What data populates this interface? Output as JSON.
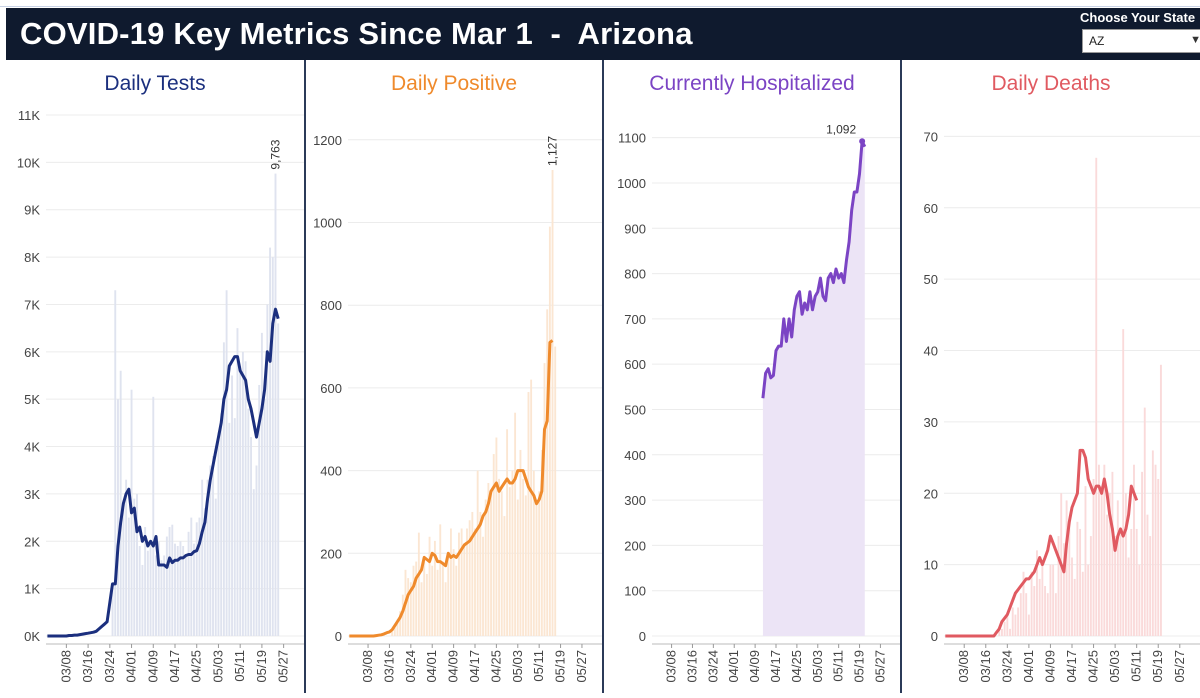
{
  "header": {
    "title": "COVID-19 Key Metrics Since Mar 1  -  Arizona",
    "state_label": "Choose Your State",
    "state_value": "AZ"
  },
  "chart_data": [
    {
      "type": "bar",
      "title": "Daily Tests",
      "color": "#1b2f7e",
      "bar_color": "#dfe3ef",
      "x_tick_labels": [
        "03/08",
        "03/16",
        "03/24",
        "04/01",
        "04/09",
        "04/17",
        "04/25",
        "05/03",
        "05/11",
        "05/19",
        "05/27"
      ],
      "y_tick_labels": [
        "0K",
        "1K",
        "2K",
        "3K",
        "4K",
        "5K",
        "6K",
        "7K",
        "8K",
        "9K",
        "10K",
        "11K"
      ],
      "ylim": [
        0,
        11000
      ],
      "start_date": "03/01",
      "bar_start_index": 24,
      "bars": [
        1100,
        7300,
        5000,
        5600,
        2700,
        3300,
        2500,
        5200,
        2900,
        3000,
        1900,
        1500,
        2300,
        1800,
        2000,
        5050,
        1700,
        2000,
        1600,
        1700,
        2100,
        2300,
        2350,
        1950,
        1900,
        2000,
        1900,
        1700,
        2200,
        2500,
        1950,
        2400,
        2500,
        3300,
        2700,
        3300,
        3600,
        3800,
        2900,
        4300,
        4700,
        6200,
        7300,
        4500,
        5500,
        4600,
        6500,
        5700,
        6000,
        5800,
        4800,
        4200,
        3100,
        3600,
        5300,
        6400,
        5000,
        7000,
        8200,
        8000,
        9763,
        6600
      ],
      "line_start_index": 0,
      "line": [
        0,
        0,
        0,
        0,
        0,
        0,
        0,
        0,
        10,
        10,
        20,
        20,
        30,
        40,
        50,
        60,
        70,
        80,
        100,
        150,
        200,
        250,
        300,
        700,
        1100,
        1100,
        1900,
        2400,
        2800,
        3000,
        3100,
        2600,
        2700,
        2200,
        2300,
        2000,
        2100,
        1900,
        2000,
        1900,
        2100,
        1500,
        1500,
        1500,
        1450,
        1650,
        1550,
        1600,
        1600,
        1650,
        1650,
        1700,
        1720,
        1720,
        1780,
        1800,
        1950,
        2200,
        2400,
        2900,
        3300,
        3600,
        3900,
        4200,
        4500,
        5000,
        5200,
        5700,
        5800,
        5900,
        5900,
        5600,
        5500,
        5400,
        5000,
        4800,
        4500,
        4200,
        4500,
        4800,
        5200,
        6000,
        5800,
        6600,
        6900,
        6700
      ],
      "peak_label": "9,763"
    },
    {
      "type": "bar",
      "title": "Daily Positive",
      "color": "#ef8a2c",
      "bar_color": "#fbe6d2",
      "x_tick_labels": [
        "03/08",
        "03/16",
        "03/24",
        "04/01",
        "04/09",
        "04/17",
        "04/25",
        "05/03",
        "05/11",
        "05/19",
        "05/27"
      ],
      "y_tick_labels": [
        "0",
        "200",
        "400",
        "600",
        "800",
        "1000",
        "1200"
      ],
      "ylim": [
        0,
        1260
      ],
      "start_date": "03/01",
      "bar_start_index": 16,
      "bars": [
        10,
        20,
        40,
        60,
        100,
        160,
        140,
        130,
        170,
        180,
        250,
        130,
        180,
        150,
        240,
        170,
        230,
        160,
        270,
        180,
        130,
        190,
        260,
        210,
        170,
        250,
        260,
        220,
        260,
        280,
        300,
        260,
        400,
        300,
        240,
        330,
        370,
        350,
        440,
        480,
        380,
        350,
        290,
        500,
        360,
        400,
        540,
        330,
        450,
        380,
        340,
        590,
        620,
        400,
        320,
        350,
        450,
        660,
        790,
        990,
        1127,
        700
      ],
      "line_start_index": 0,
      "line": [
        0,
        0,
        0,
        0,
        0,
        0,
        0,
        0,
        0,
        0,
        1,
        2,
        3,
        5,
        8,
        10,
        15,
        25,
        35,
        45,
        60,
        80,
        100,
        110,
        120,
        140,
        150,
        160,
        190,
        185,
        180,
        200,
        195,
        180,
        180,
        175,
        170,
        200,
        190,
        195,
        190,
        200,
        210,
        220,
        225,
        230,
        240,
        250,
        260,
        270,
        290,
        300,
        320,
        350,
        360,
        370,
        350,
        360,
        370,
        380,
        370,
        370,
        380,
        400,
        400,
        400,
        380,
        360,
        350,
        340,
        320,
        330,
        350,
        500,
        520,
        710,
        715
      ],
      "peak_label": "1,127"
    },
    {
      "type": "area",
      "title": "Currently Hospitalized",
      "color": "#7b44c4",
      "fill_color": "#ece4f6",
      "x_tick_labels": [
        "03/08",
        "03/16",
        "03/24",
        "04/01",
        "04/09",
        "04/17",
        "04/25",
        "05/03",
        "05/11",
        "05/19",
        "05/27"
      ],
      "y_tick_labels": [
        "0",
        "100",
        "200",
        "300",
        "400",
        "500",
        "600",
        "700",
        "800",
        "900",
        "1000",
        "1100"
      ],
      "ylim": [
        0,
        1150
      ],
      "start_date": "03/01",
      "line_start_index": 42,
      "line": [
        525,
        580,
        590,
        570,
        575,
        630,
        640,
        640,
        700,
        650,
        700,
        660,
        720,
        750,
        760,
        710,
        735,
        720,
        760,
        720,
        750,
        760,
        790,
        750,
        740,
        790,
        800,
        780,
        810,
        790,
        800,
        780,
        830,
        870,
        940,
        980,
        980,
        1020,
        1092,
        1080
      ],
      "peak_label": "1,092"
    },
    {
      "type": "bar",
      "title": "Daily Deaths",
      "color": "#e05a61",
      "bar_color": "#fadada",
      "x_tick_labels": [
        "03/08",
        "03/16",
        "03/24",
        "04/01",
        "04/09",
        "04/17",
        "04/25",
        "05/03",
        "05/11",
        "05/19",
        "05/27"
      ],
      "y_tick_labels": [
        "0",
        "10",
        "20",
        "30",
        "40",
        "50",
        "60",
        "70"
      ],
      "ylim": [
        0,
        73
      ],
      "start_date": "03/01",
      "bar_start_index": 20,
      "bars": [
        1,
        1,
        2,
        3,
        1,
        4,
        3,
        4,
        6,
        9,
        6,
        3,
        9,
        7,
        12,
        8,
        10,
        7,
        6,
        10,
        10,
        6,
        14,
        20,
        13,
        19,
        16,
        11,
        8,
        16,
        15,
        9,
        21,
        10,
        14,
        22,
        67,
        24,
        21,
        24,
        17,
        20,
        23,
        14,
        19,
        15,
        43,
        20,
        11,
        15,
        24,
        15,
        10,
        23,
        32,
        17,
        14,
        26,
        24,
        22,
        38
      ],
      "line_start_index": 0,
      "line": [
        0,
        0,
        0,
        0,
        0,
        0,
        0,
        0,
        0,
        0,
        0,
        0,
        0,
        0,
        0,
        0,
        0,
        0,
        0,
        0.5,
        1,
        2,
        2.5,
        3,
        4,
        5,
        6,
        6.5,
        7,
        7.5,
        8,
        8,
        8.5,
        9,
        10,
        11,
        10,
        11,
        12,
        14,
        13,
        12,
        11,
        10,
        9,
        13,
        16,
        18,
        19,
        20,
        26,
        26,
        25,
        22,
        21,
        20,
        21,
        21,
        20,
        22,
        20,
        17,
        15,
        12,
        14,
        15,
        14,
        15,
        17,
        21,
        20,
        19
      ]
    }
  ]
}
